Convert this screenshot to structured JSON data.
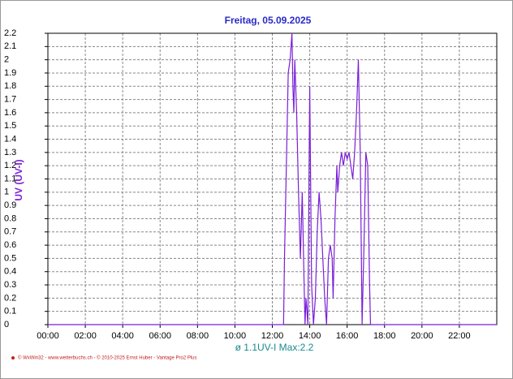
{
  "chart_data": {
    "type": "line",
    "title": "Freitag, 05.09.2025",
    "y_label": "UV  (UV-I)",
    "annotation": "ø 1.1UV-I  Max:2.2",
    "credit": "© WxWin32 - www.wetterbuchs.ch - © 2010-2025 Ernst Huber - Vantage Pro2 Plus",
    "x": [
      0,
      12.6,
      12.65,
      12.75,
      12.85,
      12.95,
      13.0,
      13.05,
      13.1,
      13.15,
      13.2,
      13.3,
      13.4,
      13.5,
      13.6,
      13.7,
      13.75,
      13.8,
      13.9,
      14.0,
      14.1,
      14.2,
      14.3,
      14.4,
      14.5,
      14.6,
      14.7,
      14.8,
      14.9,
      15.0,
      15.1,
      15.2,
      15.25,
      15.35,
      15.45,
      15.5,
      15.6,
      15.7,
      15.8,
      15.9,
      16.0,
      16.1,
      16.2,
      16.3,
      16.4,
      16.5,
      16.6,
      16.7,
      16.8,
      16.9,
      17.0,
      17.1,
      17.2,
      17.25,
      24
    ],
    "series": [
      {
        "name": "UV",
        "color": "#7a1fd8",
        "values": [
          0,
          0,
          0.5,
          1.2,
          1.9,
          2.0,
          2.1,
          2.2,
          1.8,
          1.6,
          2.0,
          1.6,
          1.0,
          0.5,
          1.0,
          0.3,
          0.0,
          0.2,
          0.0,
          1.8,
          0.3,
          0.0,
          0.2,
          0.7,
          1.0,
          0.8,
          0.5,
          0.2,
          0.0,
          0.5,
          0.6,
          0.5,
          0.2,
          0.8,
          1.2,
          1.0,
          1.2,
          1.3,
          1.2,
          1.3,
          1.25,
          1.3,
          1.2,
          1.1,
          1.3,
          1.6,
          2.0,
          1.3,
          0.0,
          0.6,
          1.3,
          1.2,
          0.3,
          0.0,
          0
        ]
      }
    ],
    "xlim": [
      0,
      24
    ],
    "xticks": [
      {
        "value": 0,
        "label": "00:00"
      },
      {
        "value": 2,
        "label": "02:00"
      },
      {
        "value": 4,
        "label": "04:00"
      },
      {
        "value": 6,
        "label": "06:00"
      },
      {
        "value": 8,
        "label": "08:00"
      },
      {
        "value": 10,
        "label": "10:00"
      },
      {
        "value": 12,
        "label": "12:00"
      },
      {
        "value": 14,
        "label": "14:00"
      },
      {
        "value": 16,
        "label": "16:00"
      },
      {
        "value": 18,
        "label": "18:00"
      },
      {
        "value": 20,
        "label": "20:00"
      },
      {
        "value": 22,
        "label": "22:00"
      }
    ],
    "ylim": [
      0,
      2.2
    ],
    "yticks": [
      0,
      0.1,
      0.2,
      0.3,
      0.4,
      0.5,
      0.6,
      0.7,
      0.8,
      0.9,
      1,
      1.1,
      1.2,
      1.3,
      1.4,
      1.5,
      1.6,
      1.7,
      1.8,
      1.9,
      2,
      2.1,
      2.2
    ],
    "grid": true
  }
}
